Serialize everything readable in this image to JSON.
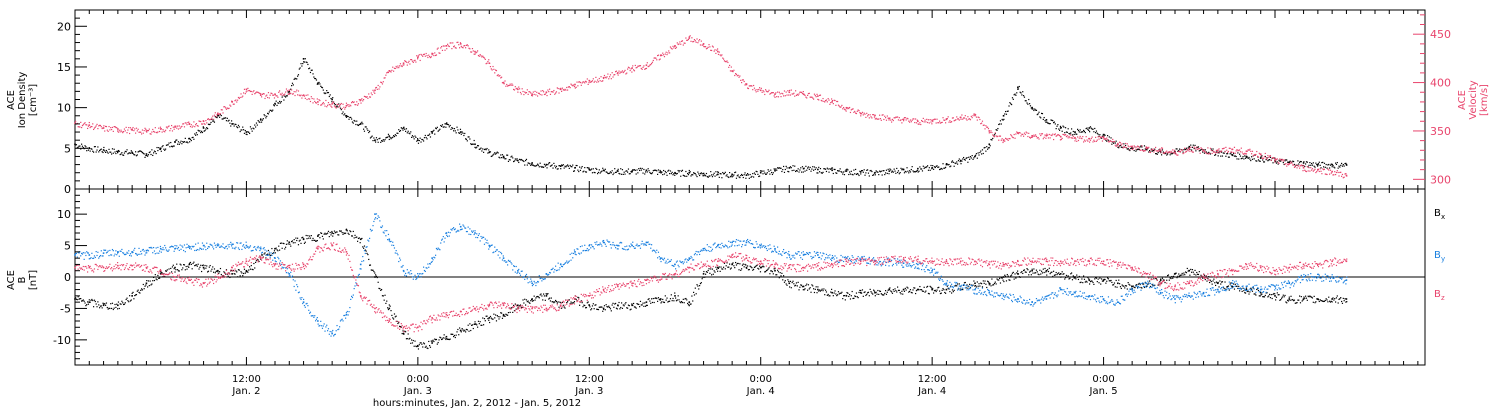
{
  "chart_data": [
    {
      "type": "scatter",
      "panel": "top",
      "ylabel_left_lines": [
        "ACE",
        "Ion Density",
        "[cm⁻³]"
      ],
      "ylabel_right_lines": [
        "ACE",
        "Velocity",
        "[km/s]"
      ],
      "ylim_left": [
        0,
        22
      ],
      "ylim_right": [
        290,
        475
      ],
      "left_ticks": [
        "0",
        "5",
        "10",
        "15",
        "20"
      ],
      "right_ticks": [
        "300",
        "350",
        "400",
        "450"
      ],
      "series": [
        {
          "name": "",
          "axis": "left",
          "color": "#000000",
          "x_hours": [
            0,
            1,
            2,
            3,
            4,
            5,
            6,
            7,
            8,
            9,
            10,
            11,
            12,
            13,
            14,
            15,
            16,
            17,
            18,
            19,
            20,
            21,
            22,
            23,
            24,
            25,
            26,
            27,
            28,
            29,
            30,
            31,
            32,
            33,
            34,
            35,
            36,
            37,
            38,
            39,
            40,
            41,
            42,
            43,
            44,
            45,
            46,
            47,
            48,
            49,
            50,
            51,
            52,
            53,
            54,
            55,
            56,
            57,
            58,
            59,
            60,
            61,
            62,
            63,
            64,
            65,
            66,
            67,
            68,
            69,
            70,
            71,
            72,
            73,
            74,
            75,
            76,
            77,
            78,
            79,
            80,
            81,
            82,
            83,
            84,
            85,
            86,
            87,
            88,
            89
          ],
          "values": [
            5.5,
            5.0,
            4.8,
            4.6,
            4.5,
            4.3,
            5.0,
            5.8,
            6.2,
            7.5,
            9.0,
            8.0,
            7.0,
            8.5,
            10.5,
            12.0,
            16.0,
            13.0,
            11.0,
            9.0,
            8.0,
            6.0,
            6.5,
            7.5,
            6.0,
            7.0,
            8.0,
            7.0,
            5.5,
            4.5,
            4.0,
            3.5,
            3.2,
            3.0,
            2.8,
            2.6,
            2.4,
            2.3,
            2.2,
            2.2,
            2.3,
            2.1,
            2.0,
            2.0,
            1.9,
            1.8,
            1.8,
            1.7,
            2.0,
            2.3,
            2.6,
            2.5,
            2.4,
            2.3,
            2.2,
            2.1,
            2.0,
            2.2,
            2.4,
            2.5,
            2.6,
            3.0,
            3.5,
            4.0,
            5.5,
            9.0,
            12.5,
            10.0,
            8.5,
            7.5,
            7.0,
            7.5,
            6.5,
            5.5,
            5.0,
            5.0,
            4.5,
            4.6,
            5.2,
            4.8,
            4.5,
            4.2,
            4.0,
            3.8,
            3.5,
            3.3,
            3.2,
            3.0,
            3.0,
            3.0
          ]
        },
        {
          "name": "",
          "axis": "right",
          "color": "#e8446c",
          "x_hours": [
            0,
            1,
            2,
            3,
            4,
            5,
            6,
            7,
            8,
            9,
            10,
            11,
            12,
            13,
            14,
            15,
            16,
            17,
            18,
            19,
            20,
            21,
            22,
            23,
            24,
            25,
            26,
            27,
            28,
            29,
            30,
            31,
            32,
            33,
            34,
            35,
            36,
            37,
            38,
            39,
            40,
            41,
            42,
            43,
            44,
            45,
            46,
            47,
            48,
            49,
            50,
            51,
            52,
            53,
            54,
            55,
            56,
            57,
            58,
            59,
            60,
            61,
            62,
            63,
            64,
            65,
            66,
            67,
            68,
            69,
            70,
            71,
            72,
            73,
            74,
            75,
            76,
            77,
            78,
            79,
            80,
            81,
            82,
            83,
            84,
            85,
            86,
            87,
            88,
            89
          ],
          "values": [
            358,
            356,
            353,
            352,
            351,
            350,
            352,
            354,
            357,
            360,
            368,
            380,
            393,
            387,
            388,
            392,
            387,
            380,
            378,
            376,
            382,
            392,
            412,
            420,
            426,
            430,
            438,
            440,
            432,
            420,
            400,
            393,
            388,
            390,
            393,
            398,
            402,
            405,
            410,
            415,
            418,
            428,
            438,
            446,
            440,
            432,
            412,
            398,
            392,
            388,
            390,
            388,
            386,
            380,
            374,
            368,
            366,
            363,
            362,
            360,
            361,
            362,
            364,
            366,
            350,
            340,
            348,
            345,
            345,
            344,
            343,
            342,
            343,
            336,
            334,
            332,
            330,
            328,
            332,
            330,
            330,
            331,
            329,
            326,
            320,
            316,
            312,
            310,
            308,
            304
          ]
        }
      ]
    },
    {
      "type": "scatter",
      "panel": "bottom",
      "ylabel_left_lines": [
        "ACE",
        "B",
        "[nT]"
      ],
      "ylim_left": [
        -14,
        14
      ],
      "left_ticks": [
        "-10",
        "-5",
        "0",
        "5",
        "10"
      ],
      "zero_line": true,
      "series": [
        {
          "name": "Bx",
          "legend_main": "B",
          "legend_sub": "x",
          "color": "#000000",
          "x_hours": [
            0,
            1,
            2,
            3,
            4,
            5,
            6,
            7,
            8,
            9,
            10,
            11,
            12,
            13,
            14,
            15,
            16,
            17,
            18,
            19,
            20,
            21,
            22,
            23,
            24,
            25,
            26,
            27,
            28,
            29,
            30,
            31,
            32,
            33,
            34,
            35,
            36,
            37,
            38,
            39,
            40,
            41,
            42,
            43,
            44,
            45,
            46,
            47,
            48,
            49,
            50,
            51,
            52,
            53,
            54,
            55,
            56,
            57,
            58,
            59,
            60,
            61,
            62,
            63,
            64,
            65,
            66,
            67,
            68,
            69,
            70,
            71,
            72,
            73,
            74,
            75,
            76,
            77,
            78,
            79,
            80,
            81,
            82,
            83,
            84,
            85,
            86,
            87,
            88,
            89
          ],
          "values": [
            -3.5,
            -4.0,
            -4.5,
            -4.5,
            -3.0,
            -1.0,
            0.5,
            1.5,
            2.0,
            1.5,
            1.0,
            0.5,
            1.0,
            3.0,
            4.5,
            5.5,
            6.0,
            6.5,
            7.0,
            7.5,
            6.0,
            0.0,
            -5.0,
            -9.0,
            -11.0,
            -10.5,
            -9.5,
            -8.5,
            -7.5,
            -6.5,
            -6.0,
            -4.5,
            -3.5,
            -3.0,
            -4.5,
            -3.5,
            -4.5,
            -5.0,
            -4.5,
            -4.5,
            -4.0,
            -3.5,
            -3.0,
            -4.0,
            0.5,
            1.5,
            2.0,
            1.5,
            1.5,
            1.0,
            -1.0,
            -1.5,
            -2.0,
            -2.5,
            -3.0,
            -2.5,
            -2.5,
            -2.0,
            -2.0,
            -2.0,
            -2.0,
            -2.0,
            -1.5,
            -1.0,
            -1.0,
            0.0,
            0.5,
            1.0,
            1.0,
            0.5,
            0.0,
            -0.5,
            -0.5,
            -1.0,
            -1.5,
            -1.0,
            -0.5,
            0.5,
            1.0,
            0.0,
            -1.0,
            -1.5,
            -2.0,
            -2.5,
            -3.0,
            -3.5,
            -3.5,
            -3.5,
            -3.5,
            -3.5
          ]
        },
        {
          "name": "By",
          "legend_main": "B",
          "legend_sub": "y",
          "color": "#1a80e0",
          "x_hours": [
            0,
            1,
            2,
            3,
            4,
            5,
            6,
            7,
            8,
            9,
            10,
            11,
            12,
            13,
            14,
            15,
            16,
            17,
            18,
            19,
            20,
            21,
            22,
            23,
            24,
            25,
            26,
            27,
            28,
            29,
            30,
            31,
            32,
            33,
            34,
            35,
            36,
            37,
            38,
            39,
            40,
            41,
            42,
            43,
            44,
            45,
            46,
            47,
            48,
            49,
            50,
            51,
            52,
            53,
            54,
            55,
            56,
            57,
            58,
            59,
            60,
            61,
            62,
            63,
            64,
            65,
            66,
            67,
            68,
            69,
            70,
            71,
            72,
            73,
            74,
            75,
            76,
            77,
            78,
            79,
            80,
            81,
            82,
            83,
            84,
            85,
            86,
            87,
            88,
            89
          ],
          "values": [
            3.5,
            3.5,
            3.8,
            4.0,
            4.0,
            4.2,
            4.5,
            4.5,
            4.8,
            5.0,
            5.0,
            5.2,
            5.0,
            4.5,
            3.0,
            0.5,
            -4.0,
            -7.0,
            -9.0,
            -6.0,
            2.0,
            10.0,
            6.0,
            1.0,
            0.0,
            3.0,
            7.0,
            8.0,
            7.0,
            5.0,
            3.0,
            1.0,
            -1.0,
            0.5,
            2.0,
            4.0,
            5.0,
            5.5,
            5.0,
            5.0,
            5.5,
            3.0,
            2.0,
            3.0,
            4.5,
            5.0,
            5.5,
            5.5,
            5.0,
            4.5,
            3.5,
            3.5,
            3.5,
            3.0,
            3.0,
            2.8,
            2.5,
            2.5,
            2.2,
            2.0,
            1.0,
            -1.0,
            -1.5,
            -2.0,
            -2.5,
            -3.0,
            -3.5,
            -4.0,
            -3.5,
            -2.0,
            -2.5,
            -3.0,
            -3.5,
            -4.0,
            -2.0,
            -1.0,
            -2.5,
            -3.5,
            -3.0,
            -2.5,
            -2.0,
            -1.0,
            -1.5,
            -2.0,
            -1.5,
            -1.0,
            0.0,
            0.0,
            0.0,
            -0.5
          ]
        },
        {
          "name": "Bz",
          "legend_main": "B",
          "legend_sub": "z",
          "color": "#e8446c",
          "x_hours": [
            0,
            1,
            2,
            3,
            4,
            5,
            6,
            7,
            8,
            9,
            10,
            11,
            12,
            13,
            14,
            15,
            16,
            17,
            18,
            19,
            20,
            21,
            22,
            23,
            24,
            25,
            26,
            27,
            28,
            29,
            30,
            31,
            32,
            33,
            34,
            35,
            36,
            37,
            38,
            39,
            40,
            41,
            42,
            43,
            44,
            45,
            46,
            47,
            48,
            49,
            50,
            51,
            52,
            53,
            54,
            55,
            56,
            57,
            58,
            59,
            60,
            61,
            62,
            63,
            64,
            65,
            66,
            67,
            68,
            69,
            70,
            71,
            72,
            73,
            74,
            75,
            76,
            77,
            78,
            79,
            80,
            81,
            82,
            83,
            84,
            85,
            86,
            87,
            88,
            89
          ],
          "values": [
            1.5,
            1.5,
            1.5,
            1.8,
            1.8,
            1.5,
            1.0,
            0.0,
            -0.5,
            -1.0,
            0.0,
            1.5,
            2.5,
            3.0,
            2.0,
            1.5,
            2.0,
            4.5,
            5.0,
            4.0,
            -3.0,
            -5.0,
            -7.0,
            -8.0,
            -8.0,
            -6.5,
            -6.0,
            -5.5,
            -5.0,
            -4.5,
            -4.5,
            -5.0,
            -5.0,
            -5.0,
            -4.5,
            -3.5,
            -3.0,
            -2.0,
            -1.5,
            -1.0,
            -0.5,
            0.0,
            0.5,
            1.5,
            2.0,
            2.5,
            3.5,
            3.0,
            2.5,
            2.0,
            1.5,
            1.5,
            1.8,
            2.0,
            2.5,
            2.5,
            2.5,
            2.8,
            2.8,
            2.8,
            2.5,
            2.5,
            2.5,
            2.5,
            2.0,
            2.0,
            2.5,
            2.5,
            2.5,
            2.5,
            2.5,
            2.5,
            2.5,
            2.0,
            1.5,
            0.5,
            -1.0,
            -1.5,
            -1.0,
            0.0,
            0.5,
            1.0,
            2.0,
            1.5,
            1.0,
            1.5,
            2.0,
            2.0,
            2.5,
            2.5
          ]
        }
      ]
    }
  ],
  "x_axis": {
    "range_hours": [
      0,
      94.5
    ],
    "tick_hours": [
      12,
      24,
      36,
      48,
      60,
      72,
      84
    ],
    "tick_time_labels": [
      "12:00",
      "0:00",
      "12:00",
      "0:00",
      "12:00",
      "0:00"
    ],
    "tick_time_hours": [
      12,
      24,
      36,
      48,
      60,
      72
    ],
    "tick_date_labels": [
      "Jan. 2",
      "Jan. 3",
      "Jan. 3",
      "Jan. 4",
      "Jan. 4",
      "Jan. 5"
    ],
    "xlabel": "hours:minutes, Jan.  2, 2012 - Jan.  5, 2012"
  }
}
